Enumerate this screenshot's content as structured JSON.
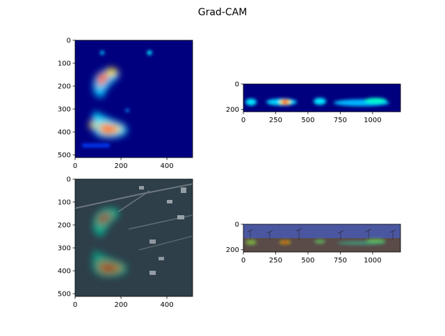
{
  "chart_data": {
    "type": "heatmap",
    "title": "Grad-CAM",
    "colors": {
      "low": "#00007f",
      "mid": "#00e5ff",
      "hot": "#ffe600",
      "peak": "#ff1a00",
      "aerial_base": "#2e3f4a",
      "street_sky": "#4a57a0",
      "street_ground": "#5a4a48"
    },
    "panels": [
      {
        "id": "aerial-heatmap",
        "image": "Grad-CAM heatmap of aerial image",
        "xlim": [
          0,
          512
        ],
        "ylim": [
          512,
          0
        ],
        "xticks": [
          "0",
          "200",
          "400"
        ],
        "yticks": [
          "0",
          "100",
          "200",
          "300",
          "400",
          "500"
        ],
        "xtick_values": [
          0,
          200,
          400
        ],
        "ytick_values": [
          0,
          100,
          200,
          300,
          400,
          500
        ],
        "hotspots": [
          {
            "x": 140,
            "y": 180,
            "intensity": 0.95
          },
          {
            "x": 160,
            "y": 385,
            "intensity": 1.0
          },
          {
            "x": 90,
            "y": 360,
            "intensity": 0.7
          },
          {
            "x": 320,
            "y": 55,
            "intensity": 0.4
          },
          {
            "x": 100,
            "y": 55,
            "intensity": 0.3
          },
          {
            "x": 230,
            "y": 305,
            "intensity": 0.3
          }
        ]
      },
      {
        "id": "street-heatmap",
        "image": "Grad-CAM heatmap of panorama",
        "xlim": [
          0,
          1216
        ],
        "ylim": [
          218,
          0
        ],
        "xticks": [
          "0",
          "250",
          "500",
          "750",
          "1000"
        ],
        "yticks": [
          "0",
          "200"
        ],
        "xtick_values": [
          0,
          250,
          500,
          750,
          1000
        ],
        "ytick_values": [
          0,
          200
        ],
        "hotspots": [
          {
            "x": 60,
            "y": 140,
            "intensity": 0.6
          },
          {
            "x": 330,
            "y": 140,
            "intensity": 1.0
          },
          {
            "x": 590,
            "y": 135,
            "intensity": 0.55
          },
          {
            "x": 860,
            "y": 145,
            "intensity": 0.5
          },
          {
            "x": 1030,
            "y": 125,
            "intensity": 0.6
          }
        ]
      },
      {
        "id": "aerial-overlay",
        "image": "Aerial image with Grad-CAM overlay",
        "xlim": [
          0,
          512
        ],
        "ylim": [
          512,
          0
        ],
        "xticks": [
          "0",
          "200",
          "400"
        ],
        "yticks": [
          "0",
          "100",
          "200",
          "300",
          "400",
          "500"
        ],
        "xtick_values": [
          0,
          200,
          400
        ],
        "ytick_values": [
          0,
          100,
          200,
          300,
          400,
          500
        ]
      },
      {
        "id": "street-overlay",
        "image": "Panorama with Grad-CAM overlay",
        "xlim": [
          0,
          1216
        ],
        "ylim": [
          218,
          0
        ],
        "xticks": [
          "0",
          "250",
          "500",
          "750",
          "1000"
        ],
        "yticks": [
          "0",
          "200"
        ],
        "xtick_values": [
          0,
          250,
          500,
          750,
          1000
        ],
        "ytick_values": [
          0,
          200
        ]
      }
    ]
  }
}
